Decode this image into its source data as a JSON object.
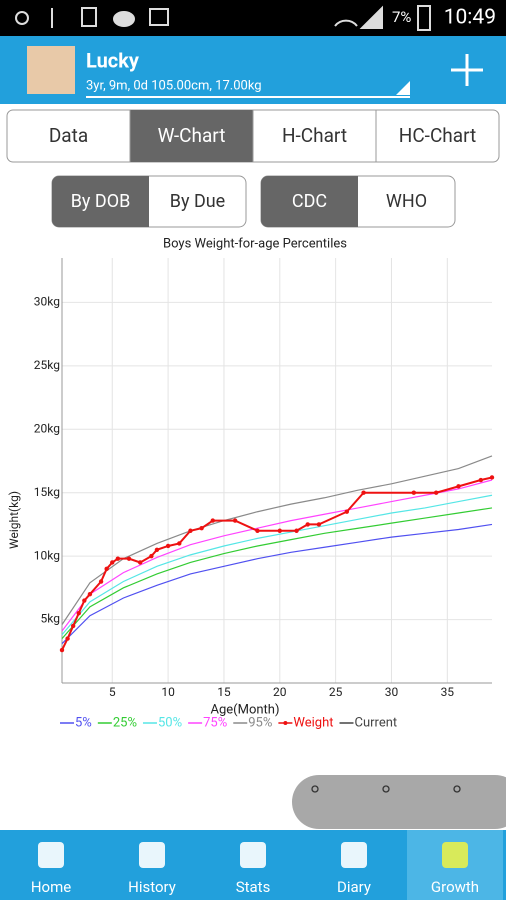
{
  "status_bar": {
    "battery": "7%",
    "time": "10:49"
  },
  "header": {
    "name": "Lucky",
    "details": "3yr, 9m, 0d 105.00cm, 17.00kg"
  },
  "tabs": [
    "Data",
    "W-Chart",
    "H-Chart",
    "HC-Chart"
  ],
  "date_toggle": [
    "By DOB",
    "By Due"
  ],
  "standard_toggle": [
    "CDC",
    "WHO"
  ],
  "chart_data": {
    "type": "line",
    "title": "Boys Weight-for-age Percentiles",
    "x_label": "Age(Month)",
    "y_label": "Weight(kg)",
    "xlim": [
      0.5,
      39
    ],
    "ylim": [
      0,
      33.5
    ],
    "xticks": [
      5,
      10,
      15,
      20,
      25,
      30,
      35
    ],
    "yticks": [
      {
        "value": 5,
        "label": "5kg"
      },
      {
        "value": 10,
        "label": "10kg"
      },
      {
        "value": 15,
        "label": "15kg"
      },
      {
        "value": 20,
        "label": "20kg"
      },
      {
        "value": 25,
        "label": "25kg"
      },
      {
        "value": 30,
        "label": "30kg"
      }
    ],
    "grid": true,
    "series": [
      {
        "name": "5%",
        "color": "#5050f0",
        "x": [
          0.5,
          3,
          6,
          9,
          12,
          15,
          18,
          21,
          24,
          27,
          30,
          33,
          36,
          39
        ],
        "values": [
          3.1,
          5.3,
          6.7,
          7.7,
          8.6,
          9.2,
          9.8,
          10.3,
          10.7,
          11.1,
          11.5,
          11.8,
          12.1,
          12.5
        ]
      },
      {
        "name": "25%",
        "color": "#33cc33",
        "x": [
          0.5,
          3,
          6,
          9,
          12,
          15,
          18,
          21,
          24,
          27,
          30,
          33,
          36,
          39
        ],
        "values": [
          3.5,
          6.0,
          7.5,
          8.6,
          9.5,
          10.2,
          10.8,
          11.3,
          11.8,
          12.2,
          12.6,
          13.0,
          13.4,
          13.8
        ]
      },
      {
        "name": "50%",
        "color": "#55e6e6",
        "x": [
          0.5,
          3,
          6,
          9,
          12,
          15,
          18,
          21,
          24,
          27,
          30,
          33,
          36,
          39
        ],
        "values": [
          3.8,
          6.4,
          8.0,
          9.2,
          10.1,
          10.8,
          11.4,
          11.9,
          12.4,
          12.9,
          13.4,
          13.8,
          14.3,
          14.8
        ]
      },
      {
        "name": "75%",
        "color": "#ff44ff",
        "x": [
          0.5,
          3,
          6,
          9,
          12,
          15,
          18,
          21,
          24,
          27,
          30,
          33,
          36,
          39
        ],
        "values": [
          4.1,
          7.0,
          8.7,
          9.9,
          10.9,
          11.6,
          12.2,
          12.8,
          13.3,
          13.8,
          14.3,
          14.8,
          15.3,
          16.0
        ]
      },
      {
        "name": "95%",
        "color": "#8a8a8a",
        "x": [
          0.5,
          3,
          6,
          9,
          12,
          15,
          18,
          21,
          24,
          27,
          30,
          33,
          36,
          39
        ],
        "values": [
          4.6,
          7.9,
          9.8,
          11.0,
          12.0,
          12.8,
          13.5,
          14.1,
          14.6,
          15.2,
          15.7,
          16.3,
          16.9,
          17.9
        ]
      },
      {
        "name": "Weight",
        "color": "#ee1111",
        "marker": true,
        "x": [
          0.5,
          1,
          1.5,
          2,
          2.5,
          3,
          4,
          4.5,
          5,
          5.5,
          6.5,
          7.5,
          8.5,
          9,
          10,
          11,
          12,
          13,
          14,
          16,
          18,
          20,
          21.5,
          22.5,
          23.5,
          26,
          27.5,
          32,
          34,
          36,
          38,
          39
        ],
        "values": [
          2.6,
          3.5,
          4.5,
          5.5,
          6.5,
          7.0,
          8.0,
          9.0,
          9.5,
          9.8,
          9.8,
          9.5,
          10.0,
          10.5,
          10.8,
          11.0,
          12.0,
          12.2,
          12.8,
          12.8,
          12.0,
          12.0,
          12.0,
          12.5,
          12.5,
          13.5,
          15.0,
          15.0,
          15.0,
          15.5,
          16.0,
          16.2
        ]
      },
      {
        "name": "Current",
        "color": "#444444",
        "x": [],
        "values": []
      }
    ]
  },
  "bottom_nav": [
    "Home",
    "History",
    "Stats",
    "Diary",
    "Growth"
  ]
}
